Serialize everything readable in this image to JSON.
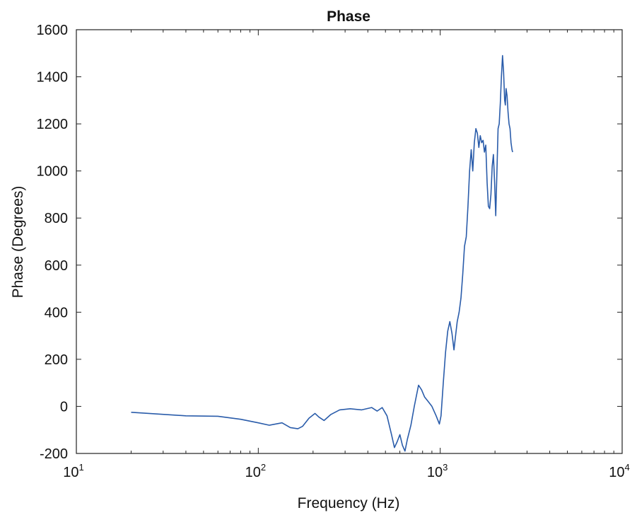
{
  "chart_data": {
    "type": "line",
    "title": "Phase",
    "xlabel": "Frequency (Hz)",
    "ylabel": "Phase (Degrees)",
    "x_scale": "log",
    "xlim": [
      10,
      10000
    ],
    "ylim": [
      -200,
      1600
    ],
    "grid": false,
    "x_tick_labels": [
      {
        "base": "10",
        "exp": "1"
      },
      {
        "base": "10",
        "exp": "2"
      },
      {
        "base": "10",
        "exp": "3"
      },
      {
        "base": "10",
        "exp": "4"
      }
    ],
    "y_tick_labels": [
      "-200",
      "0",
      "200",
      "400",
      "600",
      "800",
      "1000",
      "1200",
      "1400",
      "1600"
    ],
    "colors": {
      "series": "#2a5caa",
      "axes": "#222222"
    },
    "series": [
      {
        "x": [
          20,
          40,
          60,
          80,
          100,
          115,
          135,
          150,
          165,
          175,
          190,
          205,
          215,
          230,
          250,
          280,
          320,
          370,
          420,
          450,
          480,
          510,
          540,
          560,
          580,
          600,
          620,
          640,
          660,
          690,
          720,
          760,
          790,
          820,
          860,
          900,
          950,
          990,
          1010,
          1040,
          1070,
          1100,
          1130,
          1160,
          1190,
          1210,
          1240,
          1270,
          1300,
          1330,
          1360,
          1390,
          1420,
          1450,
          1480,
          1510,
          1540,
          1570,
          1600,
          1630,
          1660,
          1690,
          1720,
          1750,
          1780,
          1810,
          1840,
          1870,
          1900,
          1930,
          1960,
          1990,
          2020,
          2050,
          2080,
          2110,
          2140,
          2170,
          2200,
          2230,
          2260,
          2280,
          2300,
          2330,
          2360,
          2390,
          2420,
          2450,
          2480,
          2500
        ],
        "y": [
          -25,
          -40,
          -42,
          -55,
          -70,
          -80,
          -70,
          -90,
          -95,
          -85,
          -50,
          -30,
          -45,
          -60,
          -35,
          -15,
          -10,
          -15,
          -5,
          -20,
          -5,
          -40,
          -120,
          -175,
          -150,
          -120,
          -165,
          -190,
          -140,
          -80,
          0,
          90,
          70,
          40,
          20,
          0,
          -40,
          -75,
          -40,
          100,
          230,
          320,
          360,
          310,
          240,
          290,
          360,
          400,
          460,
          560,
          680,
          720,
          850,
          1000,
          1090,
          1000,
          1120,
          1180,
          1160,
          1100,
          1150,
          1120,
          1130,
          1080,
          1110,
          950,
          850,
          840,
          900,
          1020,
          1070,
          950,
          810,
          1000,
          1180,
          1200,
          1290,
          1400,
          1490,
          1420,
          1300,
          1280,
          1350,
          1320,
          1250,
          1200,
          1180,
          1120,
          1090,
          1080
        ]
      }
    ]
  }
}
